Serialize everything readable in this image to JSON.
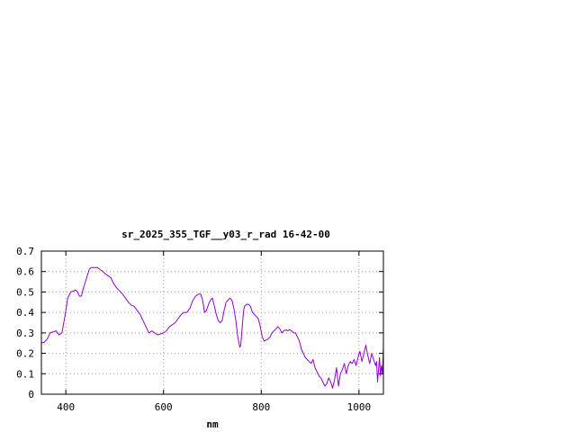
{
  "chart_data": {
    "type": "line",
    "title": "sr_2025_355_TGF__y03_r_rad 16-42-00",
    "xlabel": "nm",
    "ylabel": "",
    "xlim": [
      350,
      1050
    ],
    "ylim": [
      0,
      0.7
    ],
    "xticks": [
      400,
      600,
      800,
      1000
    ],
    "xtick_labels": [
      "400",
      "600",
      "800",
      "1000"
    ],
    "yticks": [
      0,
      0.1,
      0.2,
      0.3,
      0.4,
      0.5,
      0.6,
      0.7
    ],
    "ytick_labels": [
      "0",
      "0.1",
      "0.2",
      "0.3",
      "0.4",
      "0.5",
      "0.6",
      "0.7"
    ],
    "grid": true,
    "legend": "none",
    "series": [
      {
        "color": "#9400d3",
        "x": [
          350,
          356,
          362,
          368,
          374,
          380,
          386,
          392,
          398,
          404,
          410,
          416,
          420,
          424,
          428,
          432,
          436,
          440,
          444,
          448,
          452,
          458,
          464,
          470,
          476,
          480,
          486,
          492,
          498,
          504,
          510,
          516,
          522,
          528,
          534,
          540,
          546,
          552,
          558,
          564,
          570,
          576,
          582,
          588,
          594,
          600,
          606,
          612,
          618,
          624,
          630,
          636,
          642,
          648,
          654,
          660,
          666,
          672,
          676,
          680,
          684,
          688,
          692,
          696,
          700,
          704,
          708,
          712,
          716,
          720,
          724,
          728,
          732,
          736,
          740,
          744,
          748,
          752,
          756,
          758,
          760,
          762,
          764,
          766,
          770,
          774,
          778,
          782,
          786,
          790,
          794,
          798,
          802,
          806,
          810,
          814,
          818,
          822,
          826,
          830,
          834,
          838,
          842,
          846,
          850,
          854,
          858,
          862,
          866,
          870,
          874,
          878,
          882,
          886,
          890,
          894,
          898,
          902,
          906,
          910,
          914,
          918,
          922,
          926,
          930,
          934,
          938,
          942,
          946,
          950,
          954,
          958,
          962,
          966,
          970,
          974,
          978,
          982,
          986,
          990,
          994,
          998,
          1002,
          1006,
          1010,
          1014,
          1018,
          1022,
          1026,
          1030,
          1034,
          1036,
          1038,
          1040,
          1042,
          1044,
          1046,
          1048,
          1050
        ],
        "y": [
          0.25,
          0.255,
          0.27,
          0.3,
          0.305,
          0.31,
          0.29,
          0.3,
          0.38,
          0.47,
          0.5,
          0.505,
          0.51,
          0.5,
          0.48,
          0.48,
          0.52,
          0.55,
          0.58,
          0.61,
          0.62,
          0.62,
          0.62,
          0.61,
          0.6,
          0.59,
          0.58,
          0.57,
          0.54,
          0.52,
          0.505,
          0.49,
          0.47,
          0.45,
          0.435,
          0.43,
          0.41,
          0.39,
          0.36,
          0.33,
          0.3,
          0.31,
          0.3,
          0.29,
          0.295,
          0.3,
          0.31,
          0.33,
          0.34,
          0.35,
          0.37,
          0.39,
          0.4,
          0.4,
          0.42,
          0.46,
          0.48,
          0.49,
          0.49,
          0.46,
          0.4,
          0.41,
          0.44,
          0.46,
          0.47,
          0.43,
          0.39,
          0.36,
          0.35,
          0.36,
          0.41,
          0.45,
          0.46,
          0.47,
          0.46,
          0.42,
          0.36,
          0.28,
          0.23,
          0.24,
          0.3,
          0.36,
          0.41,
          0.43,
          0.44,
          0.44,
          0.43,
          0.4,
          0.39,
          0.38,
          0.37,
          0.33,
          0.28,
          0.26,
          0.265,
          0.27,
          0.28,
          0.3,
          0.31,
          0.32,
          0.33,
          0.32,
          0.3,
          0.31,
          0.315,
          0.31,
          0.315,
          0.31,
          0.3,
          0.3,
          0.28,
          0.26,
          0.22,
          0.2,
          0.18,
          0.17,
          0.16,
          0.15,
          0.17,
          0.13,
          0.11,
          0.09,
          0.08,
          0.06,
          0.04,
          0.05,
          0.08,
          0.06,
          0.03,
          0.07,
          0.13,
          0.04,
          0.1,
          0.12,
          0.15,
          0.1,
          0.14,
          0.16,
          0.15,
          0.17,
          0.14,
          0.18,
          0.21,
          0.16,
          0.2,
          0.24,
          0.19,
          0.15,
          0.2,
          0.17,
          0.14,
          0.16,
          0.06,
          0.12,
          0.18,
          0.09,
          0.14,
          0.1,
          0.23
        ]
      }
    ]
  }
}
